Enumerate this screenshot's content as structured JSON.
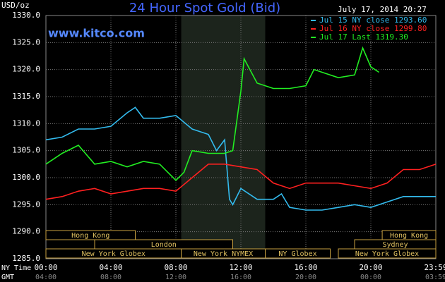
{
  "chart_data": {
    "type": "line",
    "title": "24 Hour Spot Gold (Bid)",
    "date_label": "July 17, 2014 20:27",
    "watermark": "www.kitco.com",
    "y_label": "USD/oz",
    "x_label": "NY Time",
    "x2_label": "GMT",
    "background": "#000000",
    "grid": true,
    "xlim": [
      0,
      24
    ],
    "xticks": [
      {
        "value": 0,
        "label": "00:00"
      },
      {
        "value": 4,
        "label": "04:00"
      },
      {
        "value": 8,
        "label": "08:00"
      },
      {
        "value": 12,
        "label": "12:00"
      },
      {
        "value": 16,
        "label": "16:00"
      },
      {
        "value": 20,
        "label": "20:00"
      },
      {
        "value": 24,
        "label": "23:59"
      }
    ],
    "x2ticks": [
      {
        "value": 0,
        "label": "04:00"
      },
      {
        "value": 4,
        "label": "08:00"
      },
      {
        "value": 8,
        "label": "12:00"
      },
      {
        "value": 12,
        "label": "16:00"
      },
      {
        "value": 16,
        "label": "20:00"
      },
      {
        "value": 20,
        "label": "00:00"
      },
      {
        "value": 24,
        "label": "03:59"
      }
    ],
    "ylim": [
      1285,
      1330
    ],
    "yticks": [
      {
        "value": 1285,
        "label": "1285.0"
      },
      {
        "value": 1290,
        "label": "1290.0"
      },
      {
        "value": 1295,
        "label": "1295.0"
      },
      {
        "value": 1300,
        "label": "1300.0"
      },
      {
        "value": 1305,
        "label": "1305.0"
      },
      {
        "value": 1310,
        "label": "1310.0"
      },
      {
        "value": 1315,
        "label": "1315.0"
      },
      {
        "value": 1320,
        "label": "1320.0"
      },
      {
        "value": 1325,
        "label": "1325.0"
      },
      {
        "value": 1330,
        "label": "1330.0"
      }
    ],
    "shaded": [
      8.33,
      13.5
    ],
    "sessions": [
      {
        "name": "Hong Kong",
        "row": 0,
        "start": 0,
        "end": 5.5
      },
      {
        "name": "Hong Kong",
        "row": 0,
        "start": 20.7,
        "end": 24
      },
      {
        "name": "London",
        "row": 1,
        "start": 3,
        "end": 11.5
      },
      {
        "name": "Sydney",
        "row": 1,
        "start": 19,
        "end": 24
      },
      {
        "name": "New York Globex",
        "row": 2,
        "start": 0,
        "end": 8.33
      },
      {
        "name": "New York NYMEX",
        "row": 2,
        "start": 8.33,
        "end": 13.5
      },
      {
        "name": "NY Globex",
        "row": 2,
        "start": 13.5,
        "end": 17.5
      },
      {
        "name": "New York Globex",
        "row": 2,
        "start": 18,
        "end": 24
      }
    ],
    "series": [
      {
        "name": "Jul 15 NY close 1293.60",
        "color": "#33bbee",
        "x": [
          0,
          1,
          2,
          3,
          4,
          5,
          5.5,
          6,
          7,
          8,
          9,
          10,
          10.5,
          11,
          11.3,
          11.5,
          12,
          13,
          14,
          14.5,
          15,
          16,
          17,
          18,
          19,
          20,
          21,
          22,
          23,
          24
        ],
        "values": [
          1307,
          1307.5,
          1309,
          1309,
          1309.5,
          1312,
          1313,
          1311,
          1311,
          1311.5,
          1309,
          1308,
          1305,
          1307,
          1296,
          1295,
          1298,
          1296,
          1296,
          1297,
          1294.5,
          1294,
          1294,
          1294.5,
          1295,
          1294.5,
          1295.5,
          1296.5,
          1296.5,
          1296.5
        ]
      },
      {
        "name": "Jul 16 NY close 1299.80",
        "color": "#ff2020",
        "x": [
          0,
          1,
          2,
          3,
          4,
          5,
          6,
          7,
          8,
          9,
          10,
          11,
          12,
          13,
          14,
          15,
          16,
          17,
          18,
          19,
          20,
          21,
          22,
          23,
          24
        ],
        "values": [
          1296,
          1296.5,
          1297.5,
          1298,
          1297,
          1297.5,
          1298,
          1298,
          1297.5,
          1300,
          1302.5,
          1302.5,
          1302,
          1301.5,
          1299,
          1298,
          1299,
          1299,
          1299,
          1298.5,
          1298,
          1299,
          1301.5,
          1301.5,
          1302.5
        ]
      },
      {
        "name": "Jul 17 Last 1319.30",
        "color": "#22ee22",
        "x": [
          0,
          1,
          2,
          3,
          4,
          5,
          6,
          7,
          8,
          8.5,
          9,
          10,
          11,
          11.5,
          12,
          12.2,
          13,
          14,
          15,
          16,
          16.5,
          17,
          18,
          19,
          19.5,
          20,
          20.5
        ],
        "values": [
          1302.5,
          1304.5,
          1306,
          1302.5,
          1303,
          1302,
          1303,
          1302.5,
          1299.5,
          1301,
          1305,
          1304.5,
          1304.5,
          1305,
          1316,
          1322,
          1317.5,
          1316.5,
          1316.5,
          1317,
          1320,
          1319.5,
          1318.5,
          1319,
          1324,
          1320.5,
          1319.5
        ]
      }
    ]
  }
}
